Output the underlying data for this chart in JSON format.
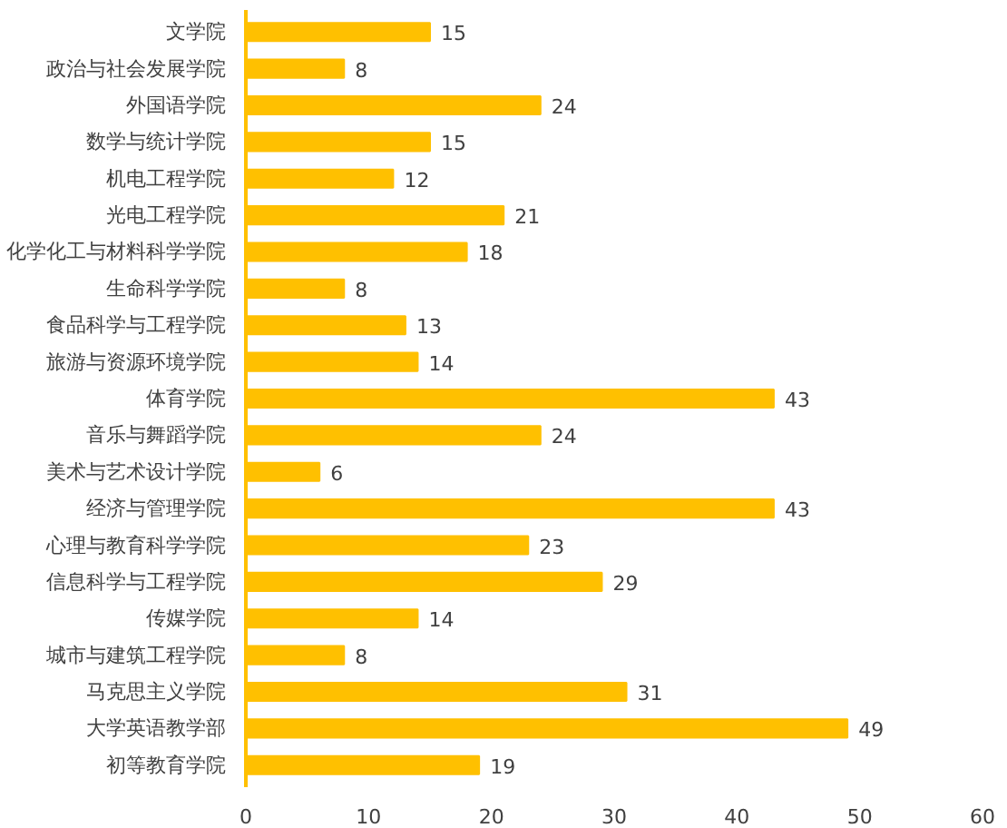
{
  "chart_data": {
    "type": "bar",
    "orientation": "horizontal",
    "categories": [
      "文学院",
      "政治与社会发展学院",
      "外国语学院",
      "数学与统计学院",
      "机电工程学院",
      "光电工程学院",
      "化学化工与材料科学学院",
      "生命科学学院",
      "食品科学与工程学院",
      "旅游与资源环境学院",
      "体育学院",
      "音乐与舞蹈学院",
      "美术与艺术设计学院",
      "经济与管理学院",
      "心理与教育科学学院",
      "信息科学与工程学院",
      "传媒学院",
      "城市与建筑工程学院",
      "马克思主义学院",
      "大学英语教学部",
      "初等教育学院"
    ],
    "values": [
      15,
      8,
      24,
      15,
      12,
      21,
      18,
      8,
      13,
      14,
      43,
      24,
      6,
      43,
      23,
      29,
      14,
      8,
      31,
      49,
      19
    ],
    "color": "#ffc000",
    "xlim": [
      0,
      60
    ],
    "xticks": [
      0,
      10,
      20,
      30,
      40,
      50,
      60
    ],
    "data_labels": true,
    "grid": false
  }
}
